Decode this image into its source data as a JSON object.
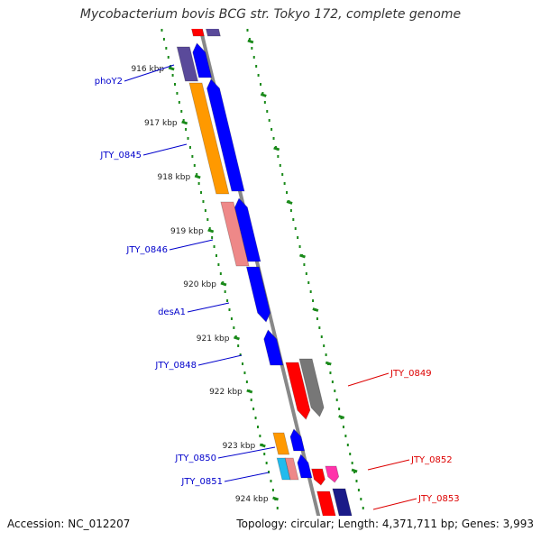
{
  "title": "Mycobacterium bovis BCG str. Tokyo 172, complete genome",
  "footer": {
    "accession": "Accession: NC_012207",
    "topology": "Topology: circular; Length: 4,371,711 bp; Genes: 3,993"
  },
  "ruler_ticks": [
    "916 kbp",
    "917 kbp",
    "918 kbp",
    "919 kbp",
    "920 kbp",
    "921 kbp",
    "922 kbp",
    "923 kbp",
    "924 kbp"
  ],
  "labels": {
    "left": [
      "phoY2",
      "JTY_0845",
      "JTY_0846",
      "desA1",
      "JTY_0848",
      "JTY_0850",
      "JTY_0851"
    ],
    "right": [
      "JTY_0849",
      "JTY_0852",
      "JTY_0853"
    ]
  },
  "colors": {
    "left_label": "#0000cc",
    "right_label": "#dd0000",
    "backbone": "#888888",
    "ruler": "#1a8a1a",
    "gene_blue": "#0000ff",
    "gene_orange": "#ff9900",
    "gene_pink": "#ee8888",
    "gene_purple": "#5a4a9a",
    "gene_red": "#ff0000",
    "gene_gray": "#777777",
    "gene_cyan": "#22bbee",
    "gene_magenta": "#ff33aa",
    "gene_navy": "#1a1a88"
  }
}
